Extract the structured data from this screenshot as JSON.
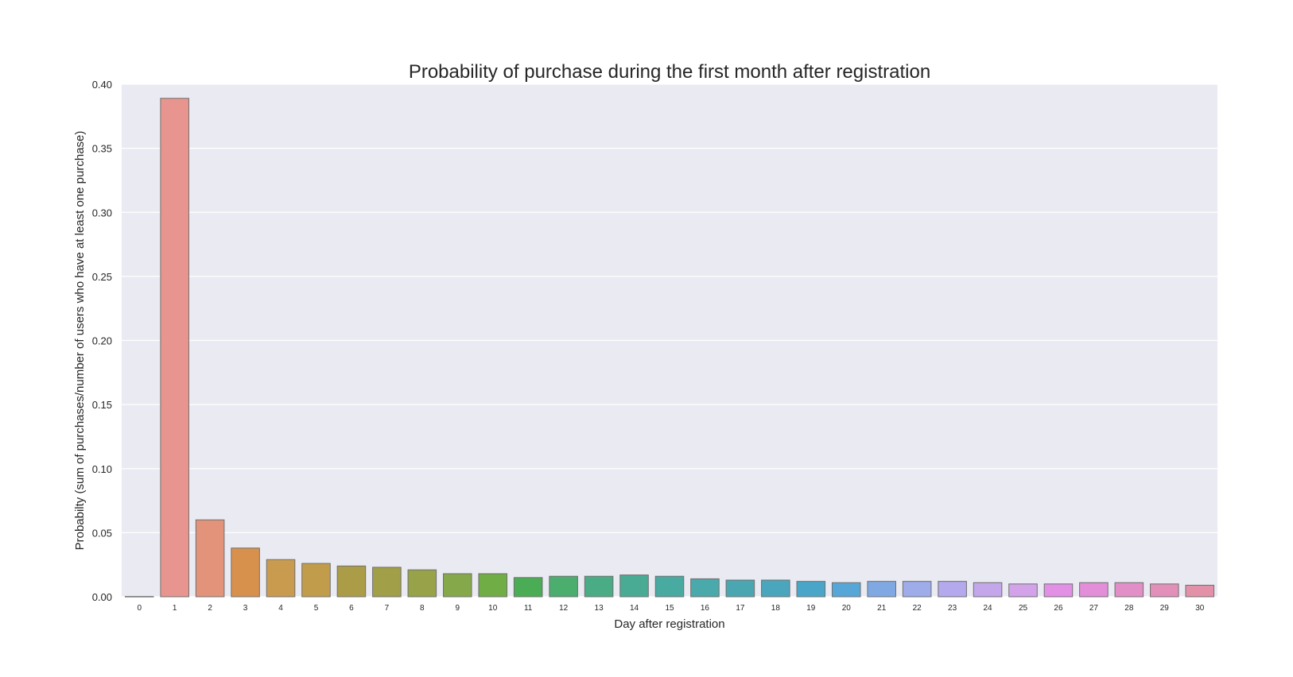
{
  "chart_data": {
    "type": "bar",
    "title": "Probability of purchase during the first month after registration",
    "xlabel": "Day after registration",
    "ylabel": "Probabilty (sum of purchases/number of users who have at least one purchase)",
    "categories": [
      "0",
      "1",
      "2",
      "3",
      "4",
      "5",
      "6",
      "7",
      "8",
      "9",
      "10",
      "11",
      "12",
      "13",
      "14",
      "15",
      "16",
      "17",
      "18",
      "19",
      "20",
      "21",
      "22",
      "23",
      "24",
      "25",
      "26",
      "27",
      "28",
      "29",
      "30"
    ],
    "values": [
      0.0002,
      0.389,
      0.06,
      0.038,
      0.029,
      0.026,
      0.024,
      0.023,
      0.021,
      0.018,
      0.018,
      0.015,
      0.016,
      0.016,
      0.017,
      0.016,
      0.014,
      0.013,
      0.013,
      0.012,
      0.011,
      0.012,
      0.012,
      0.012,
      0.011,
      0.01,
      0.01,
      0.011,
      0.011,
      0.01,
      0.009
    ],
    "ylim": [
      0,
      0.4
    ],
    "yticks": [
      "0.00",
      "0.05",
      "0.10",
      "0.15",
      "0.20",
      "0.25",
      "0.30",
      "0.35",
      "0.40"
    ],
    "ytick_values": [
      0,
      0.05,
      0.1,
      0.15,
      0.2,
      0.25,
      0.3,
      0.35,
      0.4
    ],
    "grid": true,
    "legend": "none",
    "background_color": "#eaeaf2",
    "grid_color": "#ffffff",
    "bar_colors": [
      "#e8958f",
      "#e8958f",
      "#e3937a",
      "#d8914c",
      "#c99b4e",
      "#c19c4b",
      "#ab9c47",
      "#a19f47",
      "#97a249",
      "#85a84a",
      "#70ad45",
      "#4aad55",
      "#4bae6f",
      "#4aac85",
      "#4aab94",
      "#49aaa1",
      "#4aa9aa",
      "#4aa7b2",
      "#4aa6bc",
      "#4aa6c8",
      "#56a7d8",
      "#80a9e3",
      "#9eacea",
      "#b3a9ec",
      "#c3a7ea",
      "#d3a3ea",
      "#e190e6",
      "#e28ed9",
      "#e28fc7",
      "#e290b9",
      "#e291a8"
    ]
  }
}
